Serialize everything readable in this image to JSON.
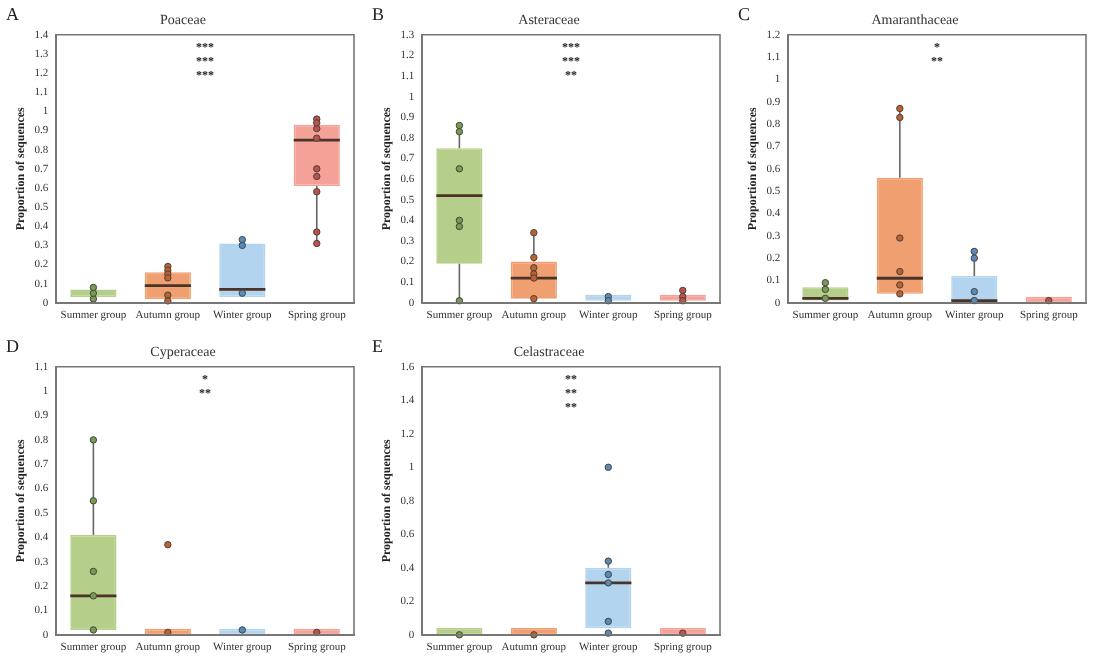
{
  "chart_data": [
    {
      "type": "box",
      "title": "Poaceae",
      "ylabel": "Proportion of sequences",
      "categories": [
        "Summer group",
        "Autumn group",
        "Winter group",
        "Spring group"
      ],
      "colors": [
        "#b5cf8a",
        "#f0a070",
        "#b3d4ee",
        "#f4a198"
      ],
      "marker": "circle",
      "grid": false,
      "legend": false,
      "ylim": [
        0,
        1.4
      ],
      "yticks": [
        0,
        0.1,
        0.2,
        0.3,
        0.4,
        0.5,
        0.6,
        0.7,
        0.8,
        0.9,
        1,
        1.1,
        1.2,
        1.3,
        1.4
      ],
      "annotations": [
        "A",
        "***",
        "***",
        "***"
      ],
      "boxes": [
        {
          "low": 0.02,
          "q1": 0.03,
          "median": 0.05,
          "q3": 0.07,
          "high": 0.08
        },
        {
          "low": 0.02,
          "q1": 0.02,
          "median": 0.09,
          "q3": 0.16,
          "high": 0.19
        },
        {
          "low": 0.03,
          "q1": 0.03,
          "median": 0.07,
          "q3": 0.31,
          "high": 0.33
        },
        {
          "low": 0.31,
          "q1": 0.61,
          "median": 0.85,
          "q3": 0.93,
          "high": 0.97
        }
      ],
      "series": [
        {
          "type": "scatter",
          "color": "#7a9a50",
          "x": [
            "Summer group",
            "Summer group",
            "Summer group"
          ],
          "values": [
            0.02,
            0.05,
            0.08
          ]
        },
        {
          "type": "scatter",
          "color": "#c0602a",
          "x": [
            "Autumn group",
            "Autumn group",
            "Autumn group",
            "Autumn group",
            "Autumn group",
            "Autumn group"
          ],
          "values": [
            0.19,
            0.17,
            0.15,
            0.13,
            0.04,
            0.01
          ]
        },
        {
          "type": "scatter",
          "color": "#5a8ab8",
          "x": [
            "Winter group",
            "Winter group",
            "Winter group"
          ],
          "values": [
            0.3,
            0.33,
            0.05
          ]
        },
        {
          "type": "scatter",
          "color": "#c05048",
          "x": [
            "Spring group",
            "Spring group",
            "Spring group",
            "Spring group",
            "Spring group",
            "Spring group",
            "Spring group",
            "Spring group",
            "Spring group"
          ],
          "values": [
            0.91,
            0.96,
            0.94,
            0.86,
            0.7,
            0.66,
            0.58,
            0.37,
            0.31
          ]
        }
      ]
    },
    {
      "type": "box",
      "title": "Asteraceae",
      "ylabel": "Proportion of sequences",
      "categories": [
        "Summer group",
        "Autumn group",
        "Winter group",
        "Spring group"
      ],
      "colors": [
        "#b5cf8a",
        "#f0a070",
        "#b3d4ee",
        "#f4a198"
      ],
      "marker": "circle",
      "grid": false,
      "legend": false,
      "ylim": [
        0,
        1.3
      ],
      "yticks": [
        0,
        0.1,
        0.2,
        0.3,
        0.4,
        0.5,
        0.6,
        0.7,
        0.8,
        0.9,
        1,
        1.1,
        1.2,
        1.3
      ],
      "annotations": [
        "B",
        "***",
        "***",
        "**"
      ],
      "boxes": [
        {
          "low": 0.01,
          "q1": 0.19,
          "median": 0.52,
          "q3": 0.75,
          "high": 0.86
        },
        {
          "low": 0.02,
          "q1": 0.02,
          "median": 0.12,
          "q3": 0.2,
          "high": 0.34
        },
        {
          "low": 0.01,
          "q1": 0.01,
          "median": 0.02,
          "q3": 0.03,
          "high": 0.03
        },
        {
          "low": 0.01,
          "q1": 0.01,
          "median": 0.02,
          "q3": 0.03,
          "high": 0.03
        }
      ],
      "series": [
        {
          "type": "scatter",
          "color": "#7a9a50",
          "x": [
            "Summer group",
            "Summer group",
            "Summer group",
            "Summer group",
            "Summer group",
            "Summer group"
          ],
          "values": [
            0.86,
            0.83,
            0.65,
            0.4,
            0.37,
            0.01
          ]
        },
        {
          "type": "scatter",
          "color": "#c0602a",
          "x": [
            "Autumn group",
            "Autumn group",
            "Autumn group",
            "Autumn group",
            "Autumn group",
            "Autumn group"
          ],
          "values": [
            0.34,
            0.22,
            0.17,
            0.14,
            0.12,
            0.02
          ]
        },
        {
          "type": "scatter",
          "color": "#5a8ab8",
          "x": [
            "Winter group",
            "Winter group"
          ],
          "values": [
            0.03,
            0.01
          ]
        },
        {
          "type": "scatter",
          "color": "#c05048",
          "x": [
            "Spring group",
            "Spring group",
            "Spring group"
          ],
          "values": [
            0.06,
            0.03,
            0.01
          ]
        }
      ]
    },
    {
      "type": "box",
      "title": "Amaranthaceae",
      "ylabel": "Proportion of sequences",
      "categories": [
        "Summer group",
        "Autumn group",
        "Winter group",
        "Spring group"
      ],
      "colors": [
        "#b5cf8a",
        "#f0a070",
        "#b3d4ee",
        "#f4a198"
      ],
      "marker": "circle",
      "grid": false,
      "legend": false,
      "ylim": [
        0,
        1.2
      ],
      "yticks": [
        0,
        0.1,
        0.2,
        0.3,
        0.4,
        0.5,
        0.6,
        0.7,
        0.8,
        0.9,
        1,
        1.1,
        1.2
      ],
      "annotations": [
        "C",
        "*",
        "**"
      ],
      "boxes": [
        {
          "low": 0.01,
          "q1": 0.01,
          "median": 0.02,
          "q3": 0.07,
          "high": 0.08
        },
        {
          "low": 0.04,
          "q1": 0.04,
          "median": 0.11,
          "q3": 0.56,
          "high": 0.87
        },
        {
          "low": 0.01,
          "q1": 0.01,
          "median": 0.01,
          "q3": 0.12,
          "high": 0.23
        },
        {
          "low": 0,
          "q1": 0,
          "median": 0,
          "q3": 0.01,
          "high": 0.01
        }
      ],
      "series": [
        {
          "type": "scatter",
          "color": "#7a9a50",
          "x": [
            "Summer group",
            "Summer group",
            "Summer group"
          ],
          "values": [
            0.09,
            0.06,
            0.02
          ]
        },
        {
          "type": "scatter",
          "color": "#c0602a",
          "x": [
            "Autumn group",
            "Autumn group",
            "Autumn group",
            "Autumn group",
            "Autumn group",
            "Autumn group"
          ],
          "values": [
            0.87,
            0.83,
            0.29,
            0.14,
            0.08,
            0.04
          ]
        },
        {
          "type": "scatter",
          "color": "#5a8ab8",
          "x": [
            "Winter group",
            "Winter group",
            "Winter group",
            "Winter group"
          ],
          "values": [
            0.23,
            0.2,
            0.05,
            0.01
          ]
        },
        {
          "type": "scatter",
          "color": "#c05048",
          "x": [
            "Spring group"
          ],
          "values": [
            0.01
          ]
        }
      ]
    },
    {
      "type": "box",
      "title": "Cyperaceae",
      "ylabel": "Proportion of sequences",
      "categories": [
        "Summer group",
        "Autumn group",
        "Winter group",
        "Spring group"
      ],
      "colors": [
        "#b5cf8a",
        "#f0a070",
        "#b3d4ee",
        "#f4a198"
      ],
      "marker": "circle",
      "grid": false,
      "legend": false,
      "ylim": [
        0,
        1.1
      ],
      "yticks": [
        0,
        0.1,
        0.2,
        0.3,
        0.4,
        0.5,
        0.6,
        0.7,
        0.8,
        0.9,
        1,
        1.1
      ],
      "annotations": [
        "D",
        "*",
        "**"
      ],
      "boxes": [
        {
          "low": 0.02,
          "q1": 0.02,
          "median": 0.16,
          "q3": 0.41,
          "high": 0.8
        },
        {
          "low": 0,
          "q1": 0,
          "median": 0,
          "q3": 0.01,
          "high": 0.01
        },
        {
          "low": 0,
          "q1": 0,
          "median": 0,
          "q3": 0.01,
          "high": 0.01
        },
        {
          "low": 0,
          "q1": 0,
          "median": 0,
          "q3": 0.01,
          "high": 0.01
        }
      ],
      "series": [
        {
          "type": "scatter",
          "color": "#7a9a50",
          "x": [
            "Summer group",
            "Summer group",
            "Summer group",
            "Summer group",
            "Summer group"
          ],
          "values": [
            0.8,
            0.55,
            0.26,
            0.16,
            0.02
          ]
        },
        {
          "type": "scatter",
          "color": "#c0602a",
          "x": [
            "Autumn group",
            "Autumn group"
          ],
          "values": [
            0.37,
            0.01
          ]
        },
        {
          "type": "scatter",
          "color": "#5a8ab8",
          "x": [
            "Winter group"
          ],
          "values": [
            0.02
          ]
        },
        {
          "type": "scatter",
          "color": "#c05048",
          "x": [
            "Spring group"
          ],
          "values": [
            0.01
          ]
        }
      ]
    },
    {
      "type": "box",
      "title": "Celastraceae",
      "ylabel": "Proportion of sequences",
      "categories": [
        "Summer group",
        "Autumn group",
        "Winter group",
        "Spring group"
      ],
      "colors": [
        "#b5cf8a",
        "#f0a070",
        "#b3d4ee",
        "#f4a198"
      ],
      "marker": "circle",
      "grid": false,
      "legend": false,
      "ylim": [
        0,
        1.6
      ],
      "yticks": [
        0,
        0.2,
        0.4,
        0.6,
        0.8,
        1,
        1.2,
        1.4,
        1.6
      ],
      "annotations": [
        "E",
        "**",
        "**",
        "**"
      ],
      "boxes": [
        {
          "low": 0,
          "q1": 0,
          "median": 0,
          "q3": 0.04,
          "high": 0.04
        },
        {
          "low": 0,
          "q1": 0,
          "median": 0,
          "q3": 0.04,
          "high": 0.04
        },
        {
          "low": 0.04,
          "q1": 0.04,
          "median": 0.31,
          "q3": 0.4,
          "high": 0.44
        },
        {
          "low": 0,
          "q1": 0,
          "median": 0,
          "q3": 0.04,
          "high": 0.04
        }
      ],
      "series": [
        {
          "type": "scatter",
          "color": "#7a9a50",
          "x": [
            "Summer group"
          ],
          "values": [
            0
          ]
        },
        {
          "type": "scatter",
          "color": "#c0602a",
          "x": [
            "Autumn group"
          ],
          "values": [
            0
          ]
        },
        {
          "type": "scatter",
          "color": "#5a8ab8",
          "x": [
            "Winter group",
            "Winter group",
            "Winter group",
            "Winter group",
            "Winter group",
            "Winter group"
          ],
          "values": [
            1,
            0.44,
            0.36,
            0.31,
            0.08,
            0.01
          ]
        },
        {
          "type": "scatter",
          "color": "#c05048",
          "x": [
            "Spring group"
          ],
          "values": [
            0.01
          ]
        }
      ]
    }
  ]
}
